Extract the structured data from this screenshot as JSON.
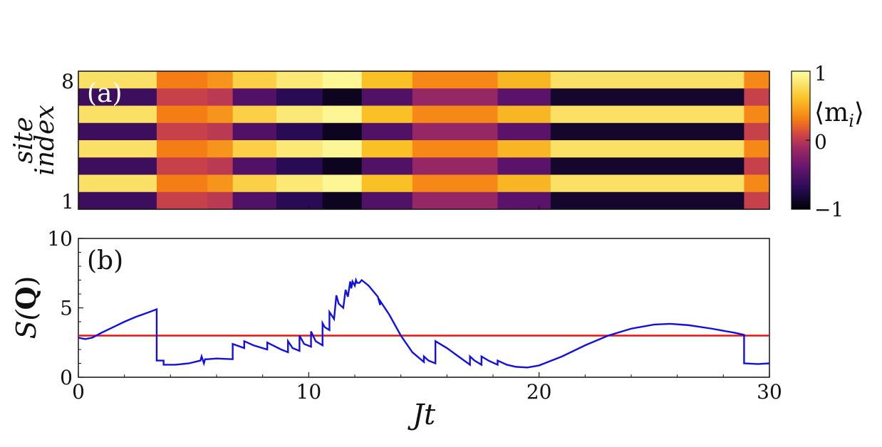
{
  "chart_data": [
    {
      "id": "a",
      "type": "heatmap",
      "panel_label": "(a)",
      "ylabel_line1": "site",
      "ylabel_line2": "index",
      "ytick_labels": [
        "8",
        "1"
      ],
      "xlim": [
        0,
        30
      ],
      "n_sites": 8,
      "colorbar": {
        "title": "⟨m_i⟩",
        "title_main": "⟨m",
        "title_sub": "i",
        "title_close": "⟩",
        "tick_labels": [
          "1",
          "0",
          "−1"
        ],
        "ticks": [
          1,
          0,
          -1
        ],
        "range": [
          -1,
          1
        ],
        "colormap": "inferno"
      },
      "segments": [
        {
          "t": [
            0,
            3.4
          ],
          "m": [
            0.8,
            -0.6,
            0.8,
            -0.6,
            0.8,
            -0.6,
            0.8,
            -0.6
          ]
        },
        {
          "t": [
            3.4,
            5.6
          ],
          "m": [
            0.3,
            0.05,
            0.3,
            0.05,
            0.3,
            0.05,
            0.3,
            0.05
          ]
        },
        {
          "t": [
            5.6,
            6.7
          ],
          "m": [
            0.4,
            0.0,
            0.4,
            0.0,
            0.4,
            0.0,
            0.4,
            0.0
          ]
        },
        {
          "t": [
            6.7,
            8.6
          ],
          "m": [
            0.7,
            -0.5,
            0.7,
            -0.5,
            0.7,
            -0.5,
            0.7,
            -0.5
          ]
        },
        {
          "t": [
            8.6,
            10.6
          ],
          "m": [
            0.85,
            -0.7,
            0.85,
            -0.7,
            0.85,
            -0.7,
            0.85,
            -0.7
          ]
        },
        {
          "t": [
            10.6,
            12.3
          ],
          "m": [
            0.95,
            -0.9,
            0.95,
            -0.9,
            0.95,
            -0.9,
            0.95,
            -0.9
          ]
        },
        {
          "t": [
            12.3,
            14.5
          ],
          "m": [
            0.6,
            -0.5,
            0.6,
            -0.5,
            0.6,
            -0.5,
            0.6,
            -0.5
          ]
        },
        {
          "t": [
            14.5,
            18.2
          ],
          "m": [
            0.35,
            -0.15,
            0.35,
            -0.15,
            0.35,
            -0.15,
            0.35,
            -0.15
          ]
        },
        {
          "t": [
            18.2,
            20.5
          ],
          "m": [
            0.55,
            -0.45,
            0.55,
            -0.45,
            0.55,
            -0.45,
            0.55,
            -0.45
          ]
        },
        {
          "t": [
            20.5,
            28.9
          ],
          "m": [
            0.8,
            -0.85,
            0.8,
            -0.85,
            0.8,
            -0.85,
            0.8,
            -0.85
          ]
        },
        {
          "t": [
            28.9,
            30
          ],
          "m": [
            0.35,
            0.05,
            0.35,
            0.05,
            0.35,
            0.05,
            0.35,
            0.05
          ]
        }
      ]
    },
    {
      "id": "b",
      "type": "line",
      "panel_label": "(b)",
      "ylabel": "S(Q)",
      "ylabel_main": "S(",
      "ylabel_bold": "Q",
      "ylabel_close": ")",
      "xlabel": "Jt",
      "xlim": [
        0,
        30
      ],
      "ylim": [
        0,
        10
      ],
      "xticks": [
        0,
        10,
        20,
        30
      ],
      "xtick_labels": [
        "0",
        "10",
        "20",
        "30"
      ],
      "yticks": [
        0,
        5,
        10
      ],
      "ytick_labels": [
        "0",
        "5",
        "10"
      ],
      "series": [
        {
          "name": "S(Q)",
          "color": "#1010e0",
          "x": [
            0,
            0.3,
            0.6,
            1.0,
            1.5,
            2.0,
            2.5,
            3.0,
            3.4,
            3.4,
            3.7,
            3.7,
            4.2,
            4.8,
            5.3,
            5.35,
            5.45,
            5.5,
            5.6,
            6.0,
            6.7,
            6.7,
            7.2,
            7.2,
            7.6,
            8.2,
            8.2,
            8.8,
            9.1,
            9.1,
            9.3,
            9.6,
            9.6,
            9.8,
            10.1,
            10.1,
            10.3,
            10.6,
            10.6,
            10.7,
            10.9,
            10.9,
            11.1,
            11.2,
            11.3,
            11.5,
            11.6,
            11.7,
            11.8,
            11.85,
            11.9,
            12.0,
            12.05,
            12.1,
            12.2,
            12.3,
            12.6,
            13.0,
            13.1,
            13.1,
            13.5,
            14.0,
            14.5,
            15.0,
            15.0,
            15.2,
            15.5,
            15.5,
            16.0,
            16.5,
            17.0,
            17.0,
            17.2,
            17.5,
            17.5,
            17.8,
            18.2,
            18.2,
            18.6,
            19.0,
            19.5,
            20.0,
            21.0,
            22.0,
            23.0,
            24.0,
            25.0,
            25.7,
            26.5,
            27.5,
            28.5,
            28.9,
            28.9,
            29.5,
            30.0
          ],
          "y": [
            2.85,
            2.75,
            2.85,
            3.2,
            3.6,
            4.0,
            4.35,
            4.65,
            4.9,
            1.2,
            1.2,
            0.9,
            0.9,
            1.0,
            1.2,
            1.5,
            1.0,
            1.3,
            1.3,
            1.35,
            1.3,
            2.4,
            2.1,
            2.6,
            2.3,
            2.0,
            2.5,
            2.0,
            1.8,
            2.6,
            2.1,
            1.9,
            3.0,
            2.4,
            2.2,
            3.3,
            2.6,
            2.3,
            3.9,
            3.6,
            3.4,
            4.7,
            4.2,
            5.9,
            5.3,
            5.0,
            6.3,
            5.8,
            6.9,
            6.4,
            6.9,
            6.6,
            7.0,
            6.8,
            6.8,
            7.0,
            6.6,
            5.8,
            5.2,
            5.5,
            4.5,
            3.0,
            1.8,
            1.1,
            1.5,
            1.2,
            1.0,
            2.6,
            2.1,
            1.5,
            0.9,
            1.5,
            1.2,
            0.9,
            1.5,
            1.2,
            0.9,
            1.2,
            0.9,
            0.75,
            0.7,
            0.85,
            1.5,
            2.3,
            3.0,
            3.5,
            3.8,
            3.85,
            3.75,
            3.5,
            3.2,
            3.05,
            1.0,
            0.95,
            1.0
          ]
        },
        {
          "name": "threshold",
          "color": "#ee1111",
          "x": [
            0,
            30
          ],
          "y": [
            3.0,
            3.0
          ]
        }
      ]
    }
  ]
}
